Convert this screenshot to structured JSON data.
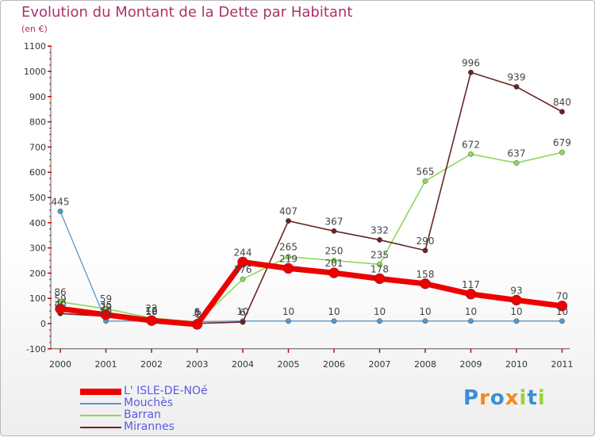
{
  "title": "Evolution du Montant de la Dette par Habitant",
  "unit": "(en €)",
  "logo": "Proxiti",
  "colors": {
    "L' ISLE-DE-NOé": "#ee0000",
    "Mouchès": "#5a96c8",
    "Barran": "#8ed85a",
    "Mirannes": "#6b2424"
  },
  "chart_data": {
    "type": "line",
    "title": "Evolution du Montant de la Dette par Habitant",
    "ylabel": "(en €)",
    "xlabel": "",
    "categories": [
      "2000",
      "2001",
      "2002",
      "2003",
      "2004",
      "2005",
      "2006",
      "2007",
      "2008",
      "2009",
      "2010",
      "2011"
    ],
    "ylim": [
      -100,
      1100
    ],
    "yticks": [
      -100,
      0,
      100,
      200,
      300,
      400,
      500,
      600,
      700,
      800,
      900,
      1000,
      1100
    ],
    "grid": false,
    "legend": "bottom-left",
    "series": [
      {
        "name": "Mouchès",
        "values": [
          445,
          10,
          10,
          8,
          10,
          10,
          10,
          10,
          10,
          10,
          10,
          10
        ]
      },
      {
        "name": "Barran",
        "values": [
          86,
          59,
          22,
          6,
          176,
          265,
          250,
          235,
          565,
          672,
          637,
          679
        ]
      },
      {
        "name": "Mirannes",
        "values": [
          40,
          29,
          10,
          1,
          6,
          407,
          367,
          332,
          290,
          996,
          939,
          840
        ]
      },
      {
        "name": "L' ISLE-DE-NOé",
        "values": [
          59,
          35,
          12,
          -3,
          244,
          219,
          201,
          178,
          158,
          117,
          93,
          70
        ]
      }
    ]
  }
}
